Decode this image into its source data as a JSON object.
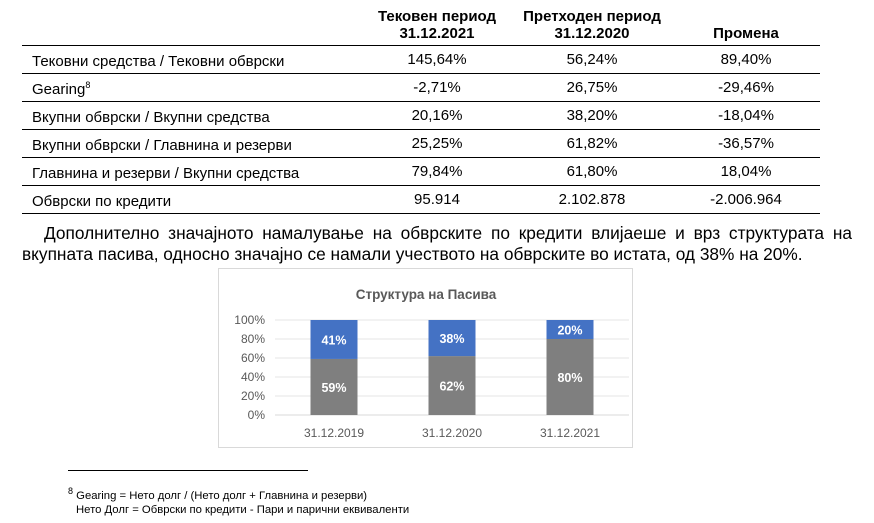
{
  "table": {
    "headers": [
      {
        "line1": "",
        "line2": ""
      },
      {
        "line1": "Тековен период",
        "line2": "31.12.2021"
      },
      {
        "line1": "Претходен период",
        "line2": "31.12.2020"
      },
      {
        "line1": "",
        "line2": "Промена"
      }
    ],
    "rows": [
      {
        "label": "Тековни средства / Тековни обврски",
        "sup": "",
        "current": "145,64%",
        "previous": "56,24%",
        "change": "89,40%"
      },
      {
        "label": "Gearing",
        "sup": "8",
        "current": "-2,71%",
        "previous": "26,75%",
        "change": "-29,46%"
      },
      {
        "label": "Вкупни обврски / Вкупни средства",
        "sup": "",
        "current": "20,16%",
        "previous": "38,20%",
        "change": "-18,04%"
      },
      {
        "label": "Вкупни обврски / Главнина и резерви",
        "sup": "",
        "current": "25,25%",
        "previous": "61,82%",
        "change": "-36,57%"
      },
      {
        "label": "Главнина и резерви / Вкупни средства",
        "sup": "",
        "current": "79,84%",
        "previous": "61,80%",
        "change": "18,04%"
      },
      {
        "label": "Обврски по кредити",
        "sup": "",
        "current": "95.914",
        "previous": "2.102.878",
        "change": "-2.006.964"
      }
    ]
  },
  "paragraph": "Дополнително значајното намалување на обврските по кредити влијаеше и врз структурата на вкупната пасива, односно значајно се намали учеството на обврските во истата, од 38% на 20%.",
  "chart_data": {
    "type": "bar",
    "stacked": true,
    "title": "Структура на Пасива",
    "categories": [
      "31.12.2019",
      "31.12.2020",
      "31.12.2021"
    ],
    "series": [
      {
        "values": [
          59,
          62,
          80
        ],
        "labels": [
          "59%",
          "62%",
          "80%"
        ],
        "color": "#7f7f7f"
      },
      {
        "values": [
          41,
          38,
          20
        ],
        "labels": [
          "41%",
          "38%",
          "20%"
        ],
        "color": "#4472c4"
      }
    ],
    "yticks": [
      "0%",
      "20%",
      "40%",
      "60%",
      "80%",
      "100%"
    ],
    "ylim": [
      0,
      100
    ],
    "grid": true,
    "legend": "none"
  },
  "footnote": {
    "number": "8",
    "line1": "Gearing = Нето долг / (Нето долг + Главнина и резерви)",
    "line2": "Нето Долг = Обврски по кредити - Пари и парични еквиваленти"
  }
}
